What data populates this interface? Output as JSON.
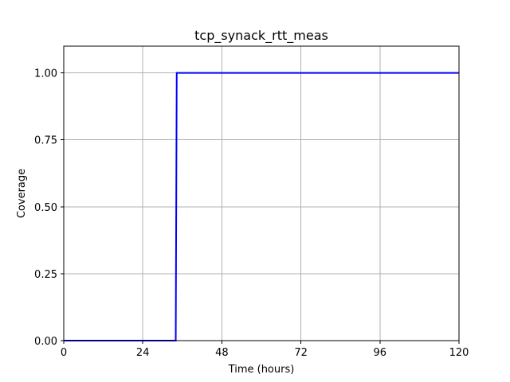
{
  "chart_data": {
    "type": "line",
    "title": "tcp_synack_rtt_meas",
    "xlabel": "Time (hours)",
    "ylabel": "Coverage",
    "xlim": [
      0,
      120
    ],
    "ylim": [
      0,
      1.1
    ],
    "x_ticks": [
      0,
      24,
      48,
      72,
      96,
      120
    ],
    "x_tick_labels": [
      "0",
      "24",
      "48",
      "72",
      "96",
      "120"
    ],
    "y_ticks": [
      0,
      0.25,
      0.5,
      0.75,
      1.0
    ],
    "y_tick_labels": [
      "0.00",
      "0.25",
      "0.50",
      "0.75",
      "1.00"
    ],
    "grid": true,
    "legend": false,
    "series": [
      {
        "color": "#0000ff",
        "style": "step",
        "points": [
          {
            "x": 0,
            "y": 0
          },
          {
            "x": 34.0,
            "y": 0
          },
          {
            "x": 34.3,
            "y": 1.0
          },
          {
            "x": 120,
            "y": 1.0
          }
        ]
      }
    ]
  }
}
